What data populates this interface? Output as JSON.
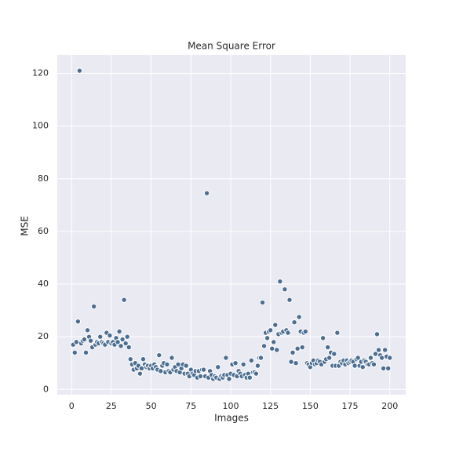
{
  "chart_data": {
    "type": "scatter",
    "title": "Mean Square Error",
    "xlabel": "Images",
    "ylabel": "MSE",
    "color": "#4c6e91",
    "grid": true,
    "xlim": [
      -9,
      210
    ],
    "ylim": [
      -2,
      127
    ],
    "xticks": [
      0,
      25,
      50,
      75,
      100,
      125,
      150,
      175,
      200
    ],
    "yticks": [
      0,
      20,
      40,
      60,
      80,
      100,
      120
    ],
    "x": [
      1,
      2,
      3,
      4,
      5,
      6,
      7,
      8,
      9,
      10,
      11,
      12,
      13,
      14,
      15,
      16,
      17,
      18,
      19,
      20,
      21,
      22,
      23,
      24,
      25,
      26,
      27,
      28,
      29,
      30,
      31,
      32,
      33,
      34,
      35,
      36,
      37,
      38,
      39,
      40,
      41,
      42,
      43,
      44,
      45,
      46,
      47,
      48,
      49,
      50,
      51,
      52,
      53,
      54,
      55,
      56,
      57,
      58,
      59,
      60,
      61,
      62,
      63,
      64,
      65,
      66,
      67,
      68,
      69,
      70,
      71,
      72,
      73,
      74,
      75,
      76,
      77,
      78,
      79,
      80,
      81,
      82,
      83,
      84,
      85,
      86,
      87,
      88,
      89,
      90,
      91,
      92,
      93,
      94,
      95,
      96,
      97,
      98,
      99,
      100,
      101,
      102,
      103,
      104,
      105,
      106,
      107,
      108,
      109,
      110,
      111,
      112,
      113,
      114,
      115,
      116,
      117,
      118,
      119,
      120,
      121,
      122,
      123,
      124,
      125,
      126,
      127,
      128,
      129,
      130,
      131,
      132,
      133,
      134,
      135,
      136,
      137,
      138,
      139,
      140,
      141,
      142,
      143,
      144,
      145,
      146,
      147,
      148,
      149,
      150,
      151,
      152,
      153,
      154,
      155,
      156,
      157,
      158,
      159,
      160,
      161,
      162,
      163,
      164,
      165,
      166,
      167,
      168,
      169,
      170,
      171,
      172,
      173,
      174,
      175,
      176,
      177,
      178,
      179,
      180,
      181,
      182,
      183,
      184,
      185,
      186,
      187,
      188,
      189,
      190,
      191,
      192,
      193,
      194,
      195,
      196,
      197,
      198,
      199,
      200
    ],
    "values": [
      17,
      14,
      18,
      25.8,
      121,
      17.5,
      18.5,
      19,
      14,
      22.5,
      20,
      18.5,
      16,
      31.5,
      17,
      18,
      17.5,
      20,
      18,
      17.5,
      17,
      21.5,
      18,
      20.5,
      17.5,
      18,
      17,
      19.5,
      18,
      22,
      16.5,
      19,
      34,
      17.5,
      20,
      16,
      11.5,
      9.5,
      7.5,
      10,
      8,
      9,
      6,
      8,
      11.5,
      9.5,
      8.5,
      9,
      8,
      9,
      8,
      9.5,
      8.5,
      7.5,
      13,
      7,
      9,
      10,
      6.5,
      9.5,
      7,
      6.5,
      12,
      7.5,
      8.5,
      7,
      9.5,
      6.5,
      8,
      9.5,
      6,
      9,
      6,
      5,
      7.5,
      6,
      5.5,
      7,
      4.5,
      7,
      5,
      7.5,
      7.5,
      5,
      74.5,
      4.5,
      7,
      5.5,
      4,
      5,
      4.5,
      8.5,
      4,
      5,
      4.5,
      5.5,
      12,
      5.5,
      4,
      6,
      9.5,
      5.5,
      10,
      5,
      7,
      6,
      5,
      9.5,
      5.5,
      4.5,
      6,
      4.5,
      11,
      6.5,
      6.5,
      6,
      9,
      12,
      12,
      33,
      16.5,
      21.5,
      19.5,
      22,
      22.5,
      15.5,
      18,
      24.5,
      15,
      21,
      41,
      21.5,
      22,
      38,
      22.5,
      21.5,
      34,
      10.5,
      14,
      25.5,
      10,
      15.5,
      27.5,
      22,
      16,
      21.5,
      22,
      10,
      9.5,
      8.5,
      10,
      11,
      9.5,
      10,
      11,
      10.5,
      9.5,
      19.5,
      10.5,
      11.5,
      16,
      12,
      14,
      9,
      13.5,
      9,
      21.5,
      9,
      10.5,
      10,
      11,
      9.5,
      11,
      10,
      10.5,
      11,
      10.5,
      9,
      11.5,
      12,
      9,
      10.5,
      8.5,
      11,
      10.5,
      9.5,
      9.5,
      12,
      10,
      9.5,
      13.5,
      21,
      15,
      13,
      12,
      8,
      15,
      12.5,
      8,
      12
    ]
  }
}
